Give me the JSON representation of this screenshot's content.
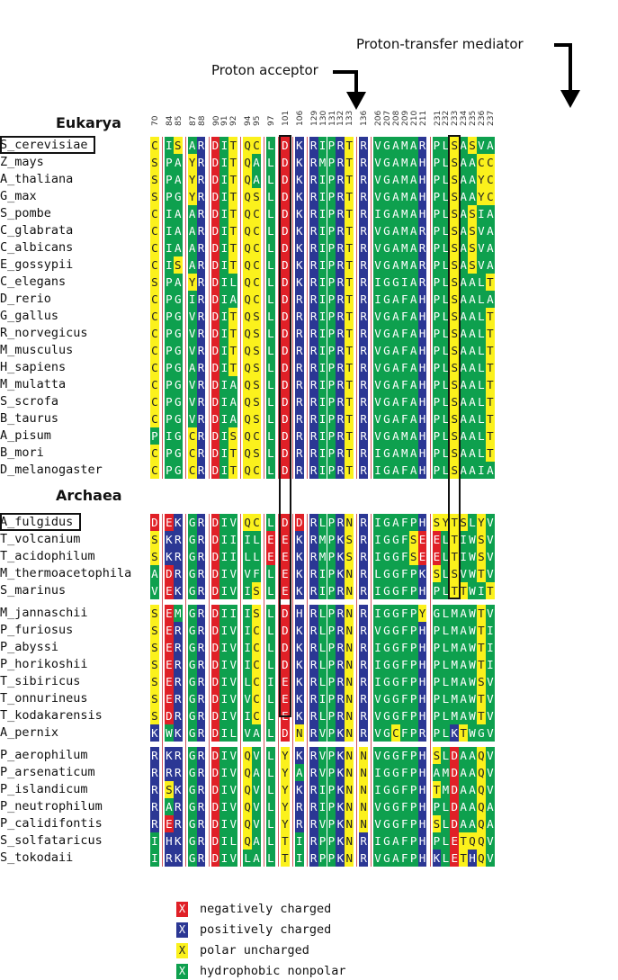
{
  "annotations": {
    "proton_acceptor": "Proton acceptor",
    "proton_transfer_mediator": "Proton-transfer mediator"
  },
  "sections": {
    "eukarya": "Eukarya",
    "archaea": "Archaea"
  },
  "columns": [
    {
      "positions": [
        "70"
      ],
      "row_class": "col0"
    },
    {
      "positions": [
        "84",
        "85"
      ]
    },
    {
      "positions": [
        "87",
        "88"
      ]
    },
    {
      "positions": [
        "90",
        "91",
        "92"
      ]
    },
    {
      "positions": [
        "94",
        "95"
      ]
    },
    {
      "positions": [
        "97"
      ]
    },
    {
      "positions": [
        "101"
      ]
    },
    {
      "positions": [
        "106"
      ]
    },
    {
      "positions": [
        "129",
        "130",
        "131",
        "132",
        "133"
      ]
    },
    {
      "positions": [
        "136"
      ]
    },
    {
      "positions": [
        "206",
        "207",
        "208",
        "209",
        "210",
        "211"
      ]
    },
    {
      "positions": [
        "231",
        "232",
        "233",
        "234",
        "235",
        "236",
        "237"
      ]
    }
  ],
  "colors": {
    "negative": "#e02027",
    "positive": "#2b3794",
    "polar": "#fbf11c",
    "hydrophobic": "#0ea04e"
  },
  "eukarya_rows": [
    {
      "name": "S_cerevisiae",
      "boxed": true,
      "seq": [
        "C",
        "IS",
        "AR",
        "DIT",
        "QC",
        "L",
        "D",
        "K",
        "RIPRT",
        "R",
        "VGAMAR",
        "PLSASVA"
      ]
    },
    {
      "name": "Z_mays",
      "seq": [
        "S",
        "PA",
        "YR",
        "DIT",
        "QA",
        "L",
        "D",
        "K",
        "RMPRT",
        "R",
        "VGAMAH",
        "PLSAACC"
      ]
    },
    {
      "name": "A_thaliana",
      "seq": [
        "S",
        "PA",
        "YR",
        "DIT",
        "QA",
        "L",
        "D",
        "K",
        "RIPRT",
        "R",
        "VGAMAH",
        "PLSAAYC"
      ]
    },
    {
      "name": "G_max",
      "seq": [
        "S",
        "PG",
        "YR",
        "DIT",
        "QS",
        "L",
        "D",
        "K",
        "RIPRT",
        "R",
        "VGAMAH",
        "PLSAAYC"
      ]
    },
    {
      "name": "S_pombe",
      "seq": [
        "C",
        "IA",
        "AR",
        "DIT",
        "QC",
        "L",
        "D",
        "K",
        "RIPRT",
        "R",
        "IGAMAH",
        "PLSASIA"
      ]
    },
    {
      "name": "C_glabrata",
      "seq": [
        "C",
        "IA",
        "AR",
        "DIT",
        "QC",
        "L",
        "D",
        "K",
        "RIPRT",
        "R",
        "VGAMAR",
        "PLSASVA"
      ]
    },
    {
      "name": "C_albicans",
      "seq": [
        "C",
        "IA",
        "AR",
        "DIT",
        "QC",
        "L",
        "D",
        "K",
        "RIPRT",
        "R",
        "VGAMAR",
        "PLSASVA"
      ]
    },
    {
      "name": "E_gossypii",
      "seq": [
        "C",
        "IS",
        "AR",
        "DIT",
        "QC",
        "L",
        "D",
        "K",
        "RIPRT",
        "R",
        "VGAMAR",
        "PLSASVA"
      ]
    },
    {
      "name": "C_elegans",
      "seq": [
        "S",
        "PA",
        "YR",
        "DIL",
        "QC",
        "L",
        "D",
        "K",
        "RIPRT",
        "R",
        "IGGIAR",
        "PLSAALT"
      ]
    },
    {
      "name": "D_rerio",
      "seq": [
        "C",
        "PG",
        "IR",
        "DIA",
        "QC",
        "L",
        "D",
        "R",
        "RIPRT",
        "R",
        "IGAFAH",
        "PLSAALA"
      ]
    },
    {
      "name": "G_gallus",
      "seq": [
        "C",
        "PG",
        "VR",
        "DIT",
        "QS",
        "L",
        "D",
        "R",
        "RIPRT",
        "R",
        "VGAFAH",
        "PLSAALT"
      ]
    },
    {
      "name": "R_norvegicus",
      "seq": [
        "C",
        "PG",
        "VR",
        "DIT",
        "QS",
        "L",
        "D",
        "R",
        "RIPRT",
        "R",
        "VGAFAH",
        "PLSAALT"
      ]
    },
    {
      "name": "M_musculus",
      "seq": [
        "C",
        "PG",
        "VR",
        "DIT",
        "QS",
        "L",
        "D",
        "R",
        "RIPRT",
        "R",
        "VGAFAH",
        "PLSAALT"
      ]
    },
    {
      "name": "H_sapiens",
      "seq": [
        "C",
        "PG",
        "AR",
        "DIT",
        "QS",
        "L",
        "D",
        "R",
        "RIPRT",
        "R",
        "VGAFAH",
        "PLSAALT"
      ]
    },
    {
      "name": "M_mulatta",
      "seq": [
        "C",
        "PG",
        "VR",
        "DIA",
        "QS",
        "L",
        "D",
        "R",
        "RIPRT",
        "R",
        "VGAFAH",
        "PLSAALT"
      ]
    },
    {
      "name": "S_scrofa",
      "seq": [
        "C",
        "PG",
        "VR",
        "DIA",
        "QS",
        "L",
        "D",
        "R",
        "RIPRT",
        "R",
        "VGAFAH",
        "PLSAALT"
      ]
    },
    {
      "name": "B_taurus",
      "seq": [
        "C",
        "PG",
        "VR",
        "DIA",
        "QS",
        "L",
        "D",
        "R",
        "RIPRT",
        "R",
        "VGAFAH",
        "PLSAALT"
      ]
    },
    {
      "name": "A_pisum",
      "seq": [
        "P",
        "IG",
        "CR",
        "DIS",
        "QC",
        "L",
        "D",
        "R",
        "RIPRT",
        "R",
        "VGAMAH",
        "PLSAALT"
      ]
    },
    {
      "name": "B_mori",
      "seq": [
        "C",
        "PG",
        "CR",
        "DIT",
        "QS",
        "L",
        "D",
        "R",
        "RIPRT",
        "R",
        "IGAMAH",
        "PLSAALT"
      ]
    },
    {
      "name": "D_melanogaster",
      "seq": [
        "C",
        "PG",
        "CR",
        "DIT",
        "QC",
        "L",
        "D",
        "R",
        "RIPRT",
        "R",
        "IGAFAH",
        "PLSAAIA"
      ]
    }
  ],
  "archaea_groups": [
    [
      {
        "name": "A_fulgidus",
        "boxed": true,
        "seq": [
          "D",
          "EK",
          "GR",
          "DIV",
          "QC",
          "L",
          "D",
          "D",
          "RLPRN",
          "R",
          "IGAFPH",
          "SYTSLYV"
        ]
      },
      {
        "name": "T_volcanium",
        "seq": [
          "S",
          "KR",
          "GR",
          "DII",
          "IL",
          "E",
          "E",
          "K",
          "RMPKS",
          "R",
          "IGGFSE",
          "ELTIWSV"
        ]
      },
      {
        "name": "T_acidophilum",
        "seq": [
          "S",
          "KR",
          "GR",
          "DII",
          "LL",
          "E",
          "E",
          "K",
          "RMPKS",
          "R",
          "IGGFSE",
          "ELTIWSV"
        ]
      },
      {
        "name": "M_thermoacetophila",
        "seq": [
          "A",
          "DR",
          "GR",
          "DIV",
          "VF",
          "L",
          "E",
          "K",
          "RIPKN",
          "R",
          "LGGFPK",
          "SLSVWTV"
        ]
      },
      {
        "name": "S_marinus",
        "seq": [
          "V",
          "EK",
          "GR",
          "DIV",
          "IS",
          "L",
          "E",
          "K",
          "RIPRN",
          "R",
          "IGGFPH",
          "PLTTWIT"
        ]
      }
    ],
    [
      {
        "name": "M_jannaschii",
        "seq": [
          "S",
          "EM",
          "GR",
          "DII",
          "IS",
          "L",
          "D",
          "H",
          "RLPRN",
          "R",
          "IGGFPY",
          "GLMAWTV"
        ]
      },
      {
        "name": "P_furiosus",
        "seq": [
          "S",
          "ER",
          "GR",
          "DIV",
          "IC",
          "L",
          "D",
          "K",
          "RLPRN",
          "R",
          "VGGFPH",
          "PLMAWTI"
        ]
      },
      {
        "name": "P_abyssi",
        "seq": [
          "S",
          "ER",
          "GR",
          "DIV",
          "IC",
          "L",
          "D",
          "K",
          "RLPRN",
          "R",
          "IGGFPH",
          "PLMAWTI"
        ]
      },
      {
        "name": "P_horikoshii",
        "seq": [
          "S",
          "ER",
          "GR",
          "DIV",
          "IC",
          "L",
          "D",
          "K",
          "RLPRN",
          "R",
          "IGGFPH",
          "PLMAWTI"
        ]
      },
      {
        "name": "T_sibiricus",
        "seq": [
          "S",
          "ER",
          "GR",
          "DIV",
          "LC",
          "I",
          "E",
          "K",
          "RLPRN",
          "R",
          "IGGFPH",
          "PLMAWSV"
        ]
      },
      {
        "name": "T_onnurineus",
        "seq": [
          "S",
          "ER",
          "GR",
          "DIV",
          "VC",
          "L",
          "E",
          "K",
          "RIPRN",
          "R",
          "VGGFPH",
          "PLMAWTV"
        ]
      },
      {
        "name": "T_kodakarensis",
        "seq": [
          "S",
          "DR",
          "GR",
          "DIV",
          "IC",
          "L",
          "E",
          "K",
          "RLPRN",
          "R",
          "VGGFPH",
          "PLMAWTV"
        ]
      },
      {
        "name": "A_pernix",
        "seq": [
          "K",
          "WK",
          "GR",
          "DIL",
          "VA",
          "L",
          "D",
          "N",
          "RVPKN",
          "R",
          "VGCFPR",
          "PLKTWGV"
        ]
      }
    ],
    [
      {
        "name": "P_aerophilum",
        "seq": [
          "R",
          "KR",
          "GR",
          "DIV",
          "QV",
          "L",
          "Y",
          "K",
          "RVPKN",
          "N",
          "VGGFPH",
          "SLDAAQV"
        ]
      },
      {
        "name": "P_arsenaticum",
        "seq": [
          "R",
          "RR",
          "GR",
          "DIV",
          "QA",
          "L",
          "Y",
          "A",
          "RVPKN",
          "N",
          "IGGFPH",
          "AMDAAQV"
        ]
      },
      {
        "name": "P_islandicum",
        "seq": [
          "R",
          "SK",
          "GR",
          "DIV",
          "QV",
          "L",
          "Y",
          "K",
          "RIPKN",
          "N",
          "IGGFPH",
          "TMDAAQV"
        ]
      },
      {
        "name": "P_neutrophilum",
        "seq": [
          "R",
          "AR",
          "GR",
          "DIV",
          "QV",
          "L",
          "Y",
          "R",
          "RIPKN",
          "N",
          "VGGFPH",
          "PLDAAQA"
        ]
      },
      {
        "name": "P_calidifontis",
        "seq": [
          "R",
          "ER",
          "GR",
          "DIV",
          "QV",
          "L",
          "Y",
          "R",
          "RVPKN",
          "N",
          "VGGFPH",
          "SLDAAQA"
        ]
      },
      {
        "name": "S_solfataricus",
        "seq": [
          "I",
          "HK",
          "GR",
          "DIL",
          "QA",
          "L",
          "T",
          "I",
          "RPPKN",
          "R",
          "IGAFPH",
          "PLETQQV"
        ]
      },
      {
        "name": "S_tokodaii",
        "seq": [
          "I",
          "RK",
          "GR",
          "DIV",
          "LA",
          "L",
          "T",
          "I",
          "RPPKN",
          "R",
          "VGAFPH",
          "KLETHQV"
        ]
      }
    ]
  ],
  "legend": [
    {
      "symbol": "X",
      "color_key": "negative",
      "label": "negatively charged"
    },
    {
      "symbol": "X",
      "color_key": "positive",
      "label": "positively charged"
    },
    {
      "symbol": "X",
      "color_key": "polar",
      "label": "polar uncharged"
    },
    {
      "symbol": "X",
      "color_key": "hydrophobic",
      "label": "hydrophobic nonpolar"
    }
  ]
}
